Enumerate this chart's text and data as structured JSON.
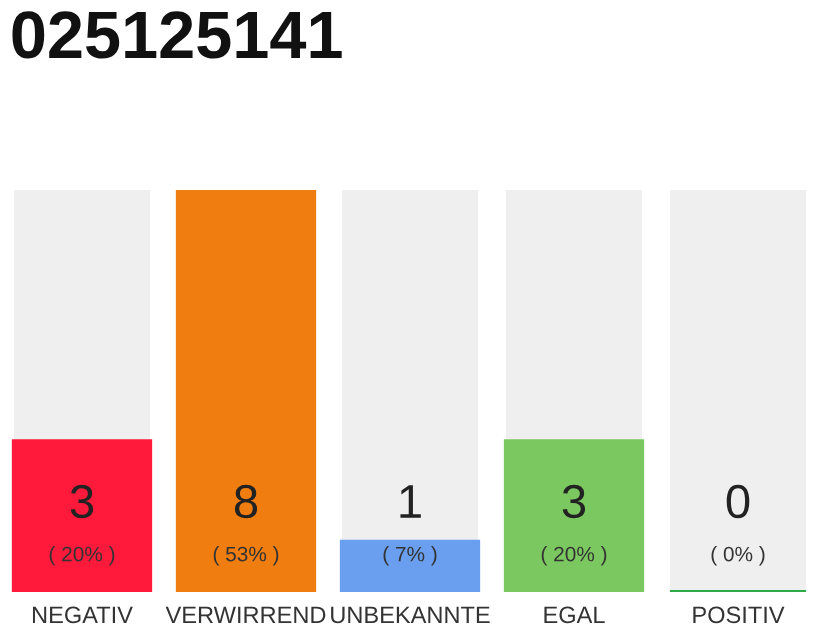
{
  "chart_data": {
    "type": "bar",
    "title": "025125141",
    "categories": [
      "NEGATIV",
      "VERWIRREND",
      "UNBEKANNTE",
      "EGAL",
      "POSITIV"
    ],
    "values": [
      3,
      8,
      1,
      3,
      0
    ],
    "colors": [
      "#ff1a3c",
      "#f07d0f",
      "#6a9ff0",
      "#7cc860",
      "#2eaa4a"
    ],
    "value_labels": [
      "3\n( 20% )",
      "8\n( 53% )",
      "1\n( 7% )",
      "3\n( 20% )",
      "0\n( 0% )"
    ],
    "ylim": [
      0,
      8
    ],
    "grid": false,
    "legend": false,
    "tick_labels": "x"
  }
}
